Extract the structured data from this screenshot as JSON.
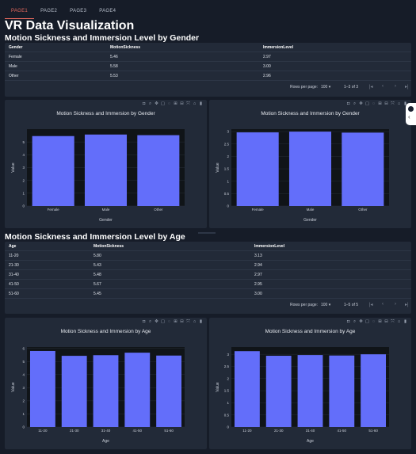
{
  "tabs": [
    {
      "label": "PAGE1",
      "active": true
    },
    {
      "label": "PAGE2",
      "active": false
    },
    {
      "label": "PAGE3",
      "active": false
    },
    {
      "label": "PAGE4",
      "active": false
    }
  ],
  "title": "VR Data Visualization",
  "gender_section": {
    "title": "Motion Sickness and Immersion Level by Gender",
    "columns": [
      "Gender",
      "MotionSickness",
      "ImmersionLevel"
    ],
    "rows": [
      [
        "Female",
        "5.46",
        "2.97"
      ],
      [
        "Male",
        "5.58",
        "3.00"
      ],
      [
        "Other",
        "5.53",
        "2.96"
      ]
    ],
    "pager": {
      "rows_per_page_label": "Rows per page:",
      "rows_per_page": "100",
      "range": "1–3 of 3"
    }
  },
  "age_section": {
    "title": "Motion Sickness and Immersion Level by Age",
    "columns": [
      "Age",
      "MotionSickness",
      "ImmersionLevel"
    ],
    "rows": [
      [
        "11-20",
        "5.80",
        "3.13"
      ],
      [
        "21-30",
        "5.43",
        "2.94"
      ],
      [
        "31-40",
        "5.48",
        "2.97"
      ],
      [
        "41-50",
        "5.67",
        "2.95"
      ],
      [
        "51-60",
        "5.45",
        "3.00"
      ]
    ],
    "pager": {
      "rows_per_page_label": "Rows per page:",
      "rows_per_page": "100",
      "range": "1–5 of 5"
    }
  },
  "colors": {
    "bar": "#636efa",
    "plot_bg": "#101418",
    "card_bg": "#222a38",
    "tab_active": "#e86a5e"
  },
  "chart_data": [
    {
      "type": "bar",
      "title": "Motion Sickness and Immersion by Gender",
      "xlabel": "Gender",
      "ylabel": "Value",
      "categories": [
        "Female",
        "Male",
        "Other"
      ],
      "values": [
        5.46,
        5.58,
        5.53
      ],
      "ylim": [
        0,
        6
      ],
      "yticks": [
        0,
        1,
        2,
        3,
        4,
        5
      ],
      "ytick_labels": [
        "0",
        "1",
        "2",
        "3",
        "4",
        "5"
      ]
    },
    {
      "type": "bar",
      "title": "Motion Sickness and Immersion by Gender",
      "xlabel": "Gender",
      "ylabel": "Value",
      "categories": [
        "Female",
        "Male",
        "Other"
      ],
      "values": [
        2.97,
        3.0,
        2.96
      ],
      "ylim": [
        0,
        3.1
      ],
      "yticks": [
        0,
        0.5,
        1,
        1.5,
        2,
        2.5,
        3
      ],
      "ytick_labels": [
        "0",
        "0.5",
        "1",
        "1.5",
        "2",
        "2.5",
        "3"
      ]
    },
    {
      "type": "bar",
      "title": "Motion Sickness and Immersion by Age",
      "xlabel": "Age",
      "ylabel": "Value",
      "categories": [
        "11-20",
        "21-30",
        "31-40",
        "41-50",
        "51-60"
      ],
      "values": [
        5.8,
        5.43,
        5.48,
        5.67,
        5.45
      ],
      "ylim": [
        0,
        6.1
      ],
      "yticks": [
        0,
        1,
        2,
        3,
        4,
        5,
        6
      ],
      "ytick_labels": [
        "0",
        "1",
        "2",
        "3",
        "4",
        "5",
        "6"
      ]
    },
    {
      "type": "bar",
      "title": "Motion Sickness and Immersion by Age",
      "xlabel": "Age",
      "ylabel": "Value",
      "categories": [
        "11-20",
        "21-30",
        "31-40",
        "41-50",
        "51-60"
      ],
      "values": [
        3.13,
        2.94,
        2.97,
        2.95,
        3.0
      ],
      "ylim": [
        0,
        3.3
      ],
      "yticks": [
        0,
        0.5,
        1,
        1.5,
        2,
        2.5,
        3
      ],
      "ytick_labels": [
        "0",
        "0.5",
        "1",
        "1.5",
        "2",
        "2.5",
        "3"
      ]
    }
  ],
  "modebar_icons": [
    "camera-icon",
    "zoom-icon",
    "pan-icon",
    "box-select-icon",
    "lasso-icon",
    "zoom-in-icon",
    "zoom-out-icon",
    "autoscale-icon",
    "reset-axes-icon",
    "plotly-logo-icon"
  ]
}
